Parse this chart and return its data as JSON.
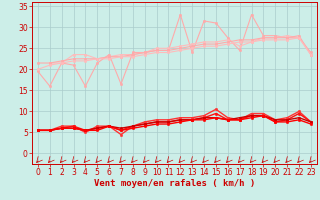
{
  "x": [
    0,
    1,
    2,
    3,
    4,
    5,
    6,
    7,
    8,
    9,
    10,
    11,
    12,
    13,
    14,
    15,
    16,
    17,
    18,
    19,
    20,
    21,
    22,
    23
  ],
  "series": [
    {
      "name": "rafales_irregular",
      "color": "#ffaaaa",
      "linewidth": 0.8,
      "marker": "o",
      "markersize": 1.8,
      "values": [
        19.5,
        16.0,
        21.5,
        21.0,
        16.0,
        21.5,
        23.5,
        16.5,
        24.0,
        24.0,
        24.5,
        24.5,
        33.0,
        24.0,
        31.5,
        31.0,
        27.5,
        24.5,
        33.0,
        28.0,
        28.0,
        27.5,
        27.5,
        24.0
      ]
    },
    {
      "name": "rafales_trend1",
      "color": "#ffbbbb",
      "linewidth": 0.8,
      "marker": "o",
      "markersize": 1.8,
      "values": [
        null,
        21.5,
        21.5,
        23.5,
        23.5,
        22.5,
        23.0,
        23.5,
        23.5,
        24.0,
        25.0,
        25.0,
        25.5,
        26.0,
        26.5,
        26.5,
        27.0,
        25.5,
        26.5,
        27.5,
        27.5,
        28.0,
        27.5,
        23.5
      ]
    },
    {
      "name": "vent_trend_upper",
      "color": "#ffcccc",
      "linewidth": 0.8,
      "marker": "o",
      "markersize": 1.8,
      "values": [
        null,
        null,
        null,
        null,
        null,
        null,
        null,
        null,
        null,
        null,
        null,
        null,
        null,
        null,
        null,
        null,
        null,
        null,
        null,
        null,
        null,
        null,
        null,
        null
      ]
    },
    {
      "name": "vent_gradual1",
      "color": "#ffaaaa",
      "linewidth": 0.8,
      "marker": "o",
      "markersize": 1.8,
      "values": [
        21.5,
        21.5,
        22.0,
        22.5,
        22.5,
        22.5,
        23.0,
        23.0,
        23.5,
        24.0,
        24.5,
        24.5,
        25.0,
        25.5,
        26.0,
        26.0,
        26.5,
        27.0,
        27.0,
        27.5,
        27.5,
        27.5,
        28.0,
        23.5
      ]
    },
    {
      "name": "vent_gradual2",
      "color": "#ffbbbb",
      "linewidth": 0.8,
      "marker": "o",
      "markersize": 1.8,
      "values": [
        20.0,
        21.0,
        21.5,
        22.0,
        22.0,
        22.5,
        22.5,
        23.0,
        23.0,
        23.5,
        24.0,
        24.0,
        24.5,
        25.0,
        25.5,
        25.5,
        26.0,
        26.5,
        26.5,
        27.0,
        27.0,
        27.0,
        27.5,
        23.5
      ]
    },
    {
      "name": "vent_moyen_high",
      "color": "#ff3333",
      "linewidth": 1.0,
      "marker": "o",
      "markersize": 1.8,
      "values": [
        5.5,
        5.5,
        6.5,
        6.5,
        5.0,
        6.5,
        6.5,
        4.5,
        6.5,
        7.5,
        8.0,
        8.0,
        8.5,
        8.5,
        9.0,
        10.5,
        8.5,
        8.0,
        9.5,
        9.5,
        8.0,
        8.5,
        10.0,
        7.5
      ]
    },
    {
      "name": "vent_moyen_mid",
      "color": "#ff1111",
      "linewidth": 1.0,
      "marker": "o",
      "markersize": 1.8,
      "values": [
        5.5,
        5.5,
        6.0,
        6.5,
        5.5,
        6.0,
        6.5,
        5.5,
        6.5,
        7.0,
        7.5,
        7.5,
        8.0,
        8.0,
        8.5,
        9.5,
        8.0,
        8.0,
        9.0,
        9.0,
        7.5,
        8.0,
        9.5,
        7.5
      ]
    },
    {
      "name": "vent_moyen_trend",
      "color": "#cc0000",
      "linewidth": 1.0,
      "marker": "o",
      "markersize": 1.8,
      "values": [
        5.5,
        5.5,
        6.0,
        6.0,
        5.5,
        6.0,
        6.5,
        6.0,
        6.5,
        7.0,
        7.5,
        7.5,
        8.0,
        8.0,
        8.5,
        8.5,
        8.0,
        8.5,
        9.0,
        9.0,
        8.0,
        8.0,
        8.5,
        7.5
      ]
    },
    {
      "name": "vent_min_line",
      "color": "#ff0000",
      "linewidth": 1.0,
      "marker": "o",
      "markersize": 1.8,
      "values": [
        5.5,
        5.5,
        6.0,
        6.0,
        5.5,
        5.5,
        6.5,
        5.5,
        6.0,
        6.5,
        7.0,
        7.0,
        7.5,
        8.0,
        8.0,
        8.5,
        8.0,
        8.0,
        8.5,
        9.0,
        7.5,
        7.5,
        8.0,
        7.0
      ]
    }
  ],
  "xlabel": "Vent moyen/en rafales ( km/h )",
  "yticks": [
    0,
    5,
    10,
    15,
    20,
    25,
    30,
    35
  ],
  "ylim": [
    -2.5,
    36
  ],
  "xlim": [
    -0.5,
    23.5
  ],
  "bg_color": "#cceee8",
  "grid_color": "#aacccc",
  "text_color": "#cc0000",
  "tick_fontsize": 5.5,
  "axis_fontsize": 6.5
}
